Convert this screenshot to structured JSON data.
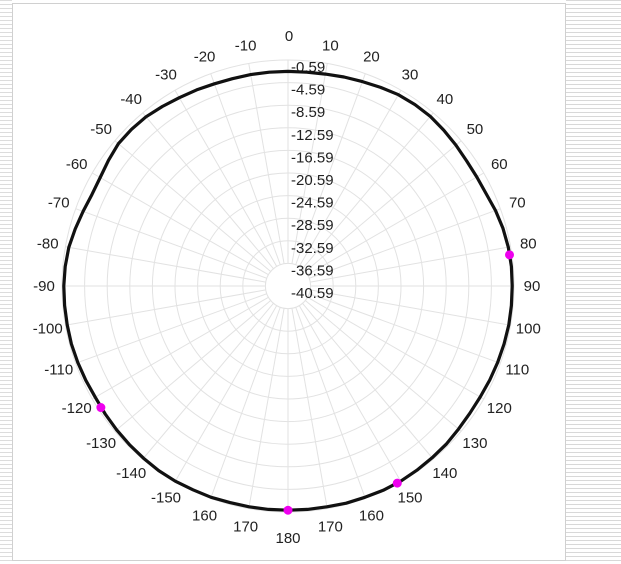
{
  "chart_data": {
    "type": "polar",
    "title": "",
    "angle_labels": [
      "0",
      "10",
      "20",
      "30",
      "40",
      "50",
      "60",
      "70",
      "80",
      "90",
      "100",
      "110",
      "120",
      "130",
      "140",
      "150",
      "160",
      "170",
      "180",
      "170",
      "160",
      "-150",
      "-140",
      "-130",
      "-120",
      "-110",
      "-100",
      "-90",
      "-80",
      "-70",
      "-60",
      "-50",
      "-40",
      "-30",
      "-20",
      "-10"
    ],
    "angle_values": [
      0,
      10,
      20,
      30,
      40,
      50,
      60,
      70,
      80,
      90,
      100,
      110,
      120,
      130,
      140,
      150,
      160,
      170,
      180,
      190,
      200,
      210,
      220,
      230,
      240,
      250,
      260,
      270,
      280,
      290,
      300,
      310,
      320,
      330,
      340,
      350
    ],
    "radial_labels": [
      "-0.59",
      "-4.59",
      "-8.59",
      "-12.59",
      "-16.59",
      "-20.59",
      "-24.59",
      "-28.59",
      "-32.59",
      "-36.59",
      "-40.59"
    ],
    "radial_range": [
      -40.59,
      -0.59
    ],
    "grid": true,
    "series": [
      {
        "angles": [
          0,
          5,
          10,
          15,
          20,
          25,
          30,
          35,
          40,
          45,
          50,
          55,
          60,
          65,
          70,
          75,
          80,
          85,
          90,
          95,
          100,
          105,
          110,
          115,
          120,
          125,
          130,
          135,
          140,
          145,
          150,
          155,
          160,
          165,
          170,
          175,
          180,
          185,
          190,
          195,
          200,
          205,
          210,
          215,
          220,
          225,
          230,
          235,
          240,
          245,
          250,
          255,
          260,
          265,
          270,
          275,
          280,
          285,
          290,
          295,
          300,
          305,
          310,
          315,
          320,
          325,
          330,
          335,
          340,
          345,
          350,
          355
        ],
        "values": [
          -2.6,
          -2.6,
          -2.5,
          -2.3,
          -2.1,
          -1.8,
          -1.5,
          -1.4,
          -1.4,
          -1.6,
          -1.8,
          -2.0,
          -2.0,
          -1.9,
          -1.5,
          -1.2,
          -1.0,
          -0.9,
          -0.9,
          -0.9,
          -0.9,
          -1.0,
          -1.1,
          -1.2,
          -1.3,
          -1.3,
          -1.2,
          -1.0,
          -0.9,
          -0.8,
          -0.7,
          -0.7,
          -0.8,
          -0.8,
          -0.9,
          -0.9,
          -0.9,
          -0.9,
          -0.9,
          -0.9,
          -0.8,
          -0.8,
          -0.7,
          -0.7,
          -0.8,
          -0.9,
          -1.0,
          -1.1,
          -1.2,
          -1.1,
          -1.0,
          -0.9,
          -0.9,
          -0.9,
          -0.9,
          -1.0,
          -1.2,
          -1.6,
          -2.0,
          -2.3,
          -2.2,
          -1.8,
          -1.4,
          -1.4,
          -1.5,
          -1.8,
          -2.1,
          -2.3,
          -2.5,
          -2.6,
          -2.6,
          -2.6
        ]
      }
    ],
    "markers": [
      {
        "angle": 82,
        "value": -1.0
      },
      {
        "angle": 151,
        "value": -0.7
      },
      {
        "angle": 180,
        "value": -0.9
      },
      {
        "angle": 237,
        "value": -1.1
      }
    ],
    "colors": {
      "line": "#111111",
      "marker": "#ee00ee",
      "grid": "#e2e2e2"
    }
  }
}
